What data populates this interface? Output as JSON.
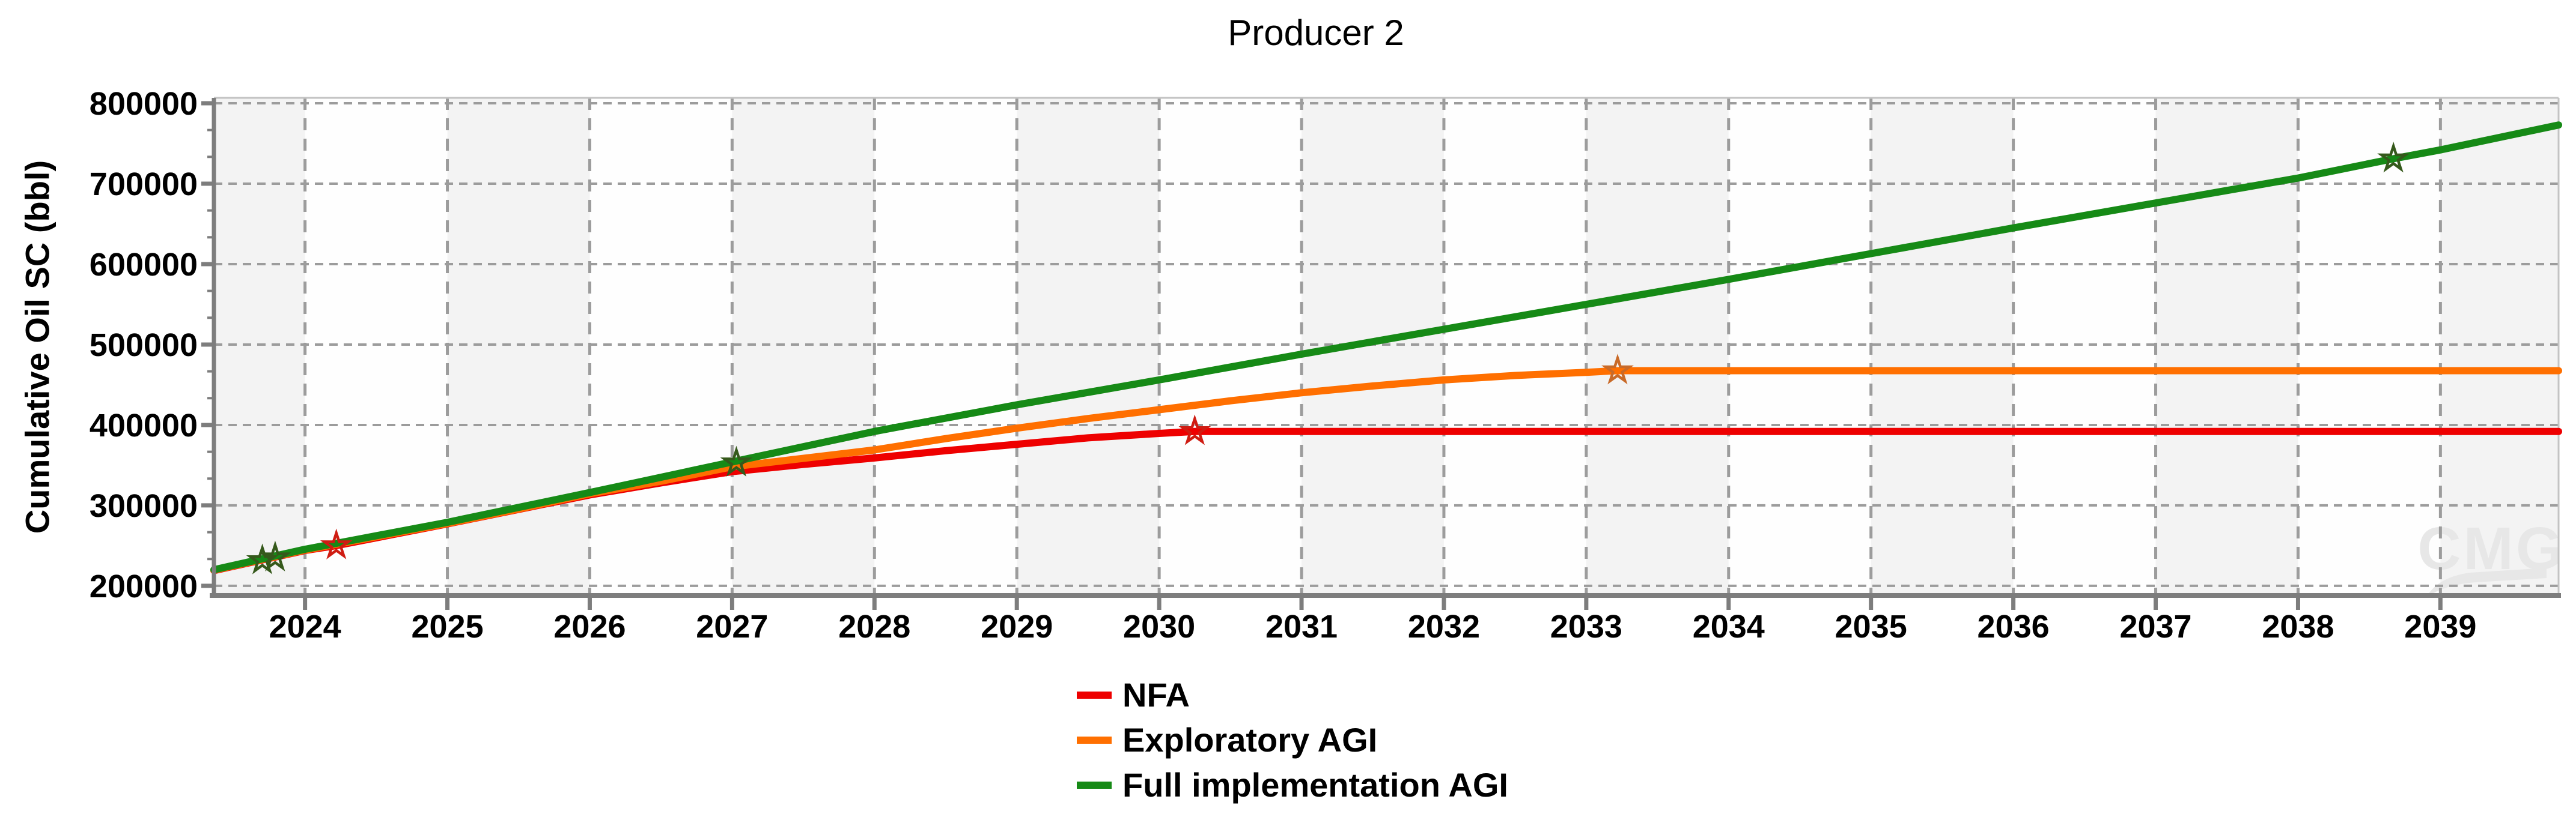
{
  "title": "Producer 2",
  "watermark": "CMG",
  "style": {
    "stripe_gray": "#f3f3f3",
    "stripe_white": "#fefefe",
    "gridline": "#9c9c9c",
    "axis": "#7d7d7d",
    "border": "#c3c3c3",
    "watermark_color": "#e7e7e7",
    "text": "#000000"
  },
  "chart_data": {
    "type": "line",
    "title": "Producer 2",
    "xlabel": "",
    "ylabel": "Cumulative Oil SC (bbl)",
    "xlim": [
      2023.36,
      2039.83
    ],
    "ylim": [
      188000,
      806700
    ],
    "grid": true,
    "legend_position": "bottom-center",
    "x_ticks": [
      2024,
      2025,
      2026,
      2027,
      2028,
      2029,
      2030,
      2031,
      2032,
      2033,
      2034,
      2035,
      2036,
      2037,
      2038,
      2039
    ],
    "x_tick_labels": [
      "2024",
      "2025",
      "2026",
      "2027",
      "2028",
      "2029",
      "2030",
      "2031",
      "2032",
      "2033",
      "2034",
      "2035",
      "2036",
      "2037",
      "2038",
      "2039"
    ],
    "y_ticks": [
      200000,
      300000,
      400000,
      500000,
      600000,
      700000,
      800000
    ],
    "y_tick_labels": [
      "200000",
      "300000",
      "400000",
      "500000",
      "600000",
      "700000",
      "800000"
    ],
    "y_minor_per_major": 3,
    "series": [
      {
        "name": "NFA",
        "color": "#ee0000",
        "marker": "star",
        "marker_color": "#cf1c12",
        "points": [
          [
            2023.36,
            219000
          ],
          [
            2024,
            244000
          ],
          [
            2024.22,
            250000
          ],
          [
            2025,
            277000
          ],
          [
            2025.5,
            295000
          ],
          [
            2026,
            313000
          ],
          [
            2026.5,
            328000
          ],
          [
            2027,
            342000
          ],
          [
            2027.5,
            351000
          ],
          [
            2028,
            359000
          ],
          [
            2028.5,
            368000
          ],
          [
            2029,
            376000
          ],
          [
            2029.5,
            384000
          ],
          [
            2030,
            389500
          ],
          [
            2030.25,
            392000
          ],
          [
            2031,
            392000
          ],
          [
            2039.83,
            392000
          ]
        ],
        "markers_at": [
          [
            2024.22,
            250000
          ],
          [
            2030.25,
            392000
          ]
        ]
      },
      {
        "name": "Exploratory AGI",
        "color": "#ff6f00",
        "marker": "star",
        "marker_color": "#c96a28",
        "points": [
          [
            2023.36,
            219500
          ],
          [
            2024,
            244500
          ],
          [
            2025,
            277500
          ],
          [
            2025.5,
            295500
          ],
          [
            2026,
            314500
          ],
          [
            2026.5,
            330000
          ],
          [
            2027,
            348000
          ],
          [
            2028,
            369000
          ],
          [
            2028.5,
            383000
          ],
          [
            2029,
            396000
          ],
          [
            2029.5,
            408000
          ],
          [
            2030,
            419000
          ],
          [
            2030.5,
            430000
          ],
          [
            2031,
            440000
          ],
          [
            2031.5,
            448500
          ],
          [
            2032,
            456000
          ],
          [
            2032.5,
            461500
          ],
          [
            2033,
            465500
          ],
          [
            2033.22,
            467500
          ],
          [
            2034,
            467500
          ],
          [
            2039.83,
            467500
          ]
        ],
        "markers_at": [
          [
            2033.22,
            467500
          ]
        ]
      },
      {
        "name": "Full implementation AGI",
        "color": "#168a16",
        "marker": "star",
        "marker_color": "#35591b",
        "points": [
          [
            2023.36,
            220000
          ],
          [
            2024,
            245500
          ],
          [
            2025,
            279000
          ],
          [
            2026,
            316000
          ],
          [
            2027,
            354000
          ],
          [
            2028,
            392000
          ],
          [
            2029,
            425000
          ],
          [
            2030,
            456000
          ],
          [
            2031,
            488000
          ],
          [
            2032,
            519000
          ],
          [
            2033,
            550000
          ],
          [
            2034,
            581000
          ],
          [
            2035,
            613000
          ],
          [
            2036,
            645000
          ],
          [
            2037,
            676000
          ],
          [
            2038,
            707000
          ],
          [
            2038.67,
            731000
          ],
          [
            2039,
            742000
          ],
          [
            2039.83,
            773000
          ]
        ],
        "markers_at": [
          [
            2023.7,
            231500
          ],
          [
            2023.79,
            235000
          ],
          [
            2027.03,
            353000
          ],
          [
            2038.67,
            731000
          ]
        ]
      }
    ]
  }
}
